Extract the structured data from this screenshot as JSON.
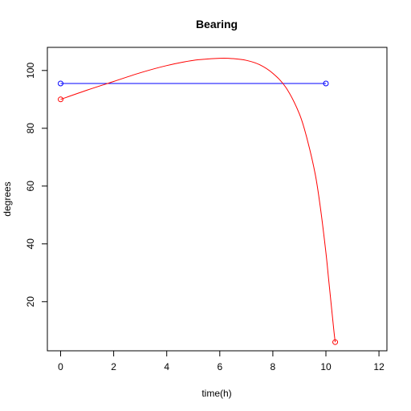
{
  "chart_data": {
    "type": "line",
    "title": "Bearing",
    "xlabel": "time(h)",
    "ylabel": "degrees",
    "xlim": [
      -0.5,
      12.3
    ],
    "ylim": [
      3,
      108
    ],
    "x_ticks": [
      0,
      2,
      4,
      6,
      8,
      10,
      12
    ],
    "y_ticks": [
      20,
      40,
      60,
      80,
      100
    ],
    "grid": false,
    "series": [
      {
        "color": "#0000ff",
        "style": "line-with-endpoint-circles",
        "x": [
          0,
          10
        ],
        "y": [
          95.5,
          95.5
        ],
        "endpoints": [
          [
            0,
            95.5
          ],
          [
            10,
            95.5
          ]
        ]
      },
      {
        "color": "#ff0000",
        "style": "curve-with-endpoint-circles",
        "x": [
          0,
          1,
          2,
          3,
          4,
          5,
          6,
          6.5,
          7,
          7.5,
          8,
          8.5,
          9,
          9.3,
          9.6,
          9.8,
          10.0,
          10.1,
          10.2,
          10.3,
          10.35
        ],
        "y": [
          90,
          93.2,
          96.2,
          99.2,
          101.7,
          103.5,
          104.2,
          104.1,
          103.5,
          102,
          99,
          94,
          85,
          76,
          64,
          52,
          37,
          28,
          19,
          10,
          6
        ],
        "endpoints": [
          [
            0,
            90
          ],
          [
            10.35,
            6
          ]
        ]
      }
    ]
  }
}
